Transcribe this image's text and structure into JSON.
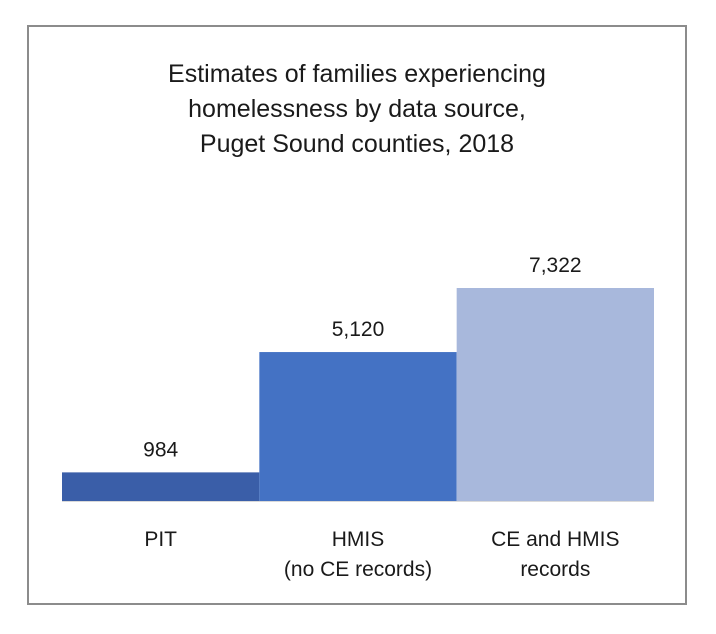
{
  "chart_data": {
    "type": "bar",
    "title_lines": [
      "Estimates of families experiencing",
      "homelessness by data source,",
      "Puget Sound counties, 2018"
    ],
    "categories": [
      [
        "PIT"
      ],
      [
        "HMIS",
        "(no CE records)"
      ],
      [
        "CE and HMIS",
        "records"
      ]
    ],
    "values": [
      984,
      5120,
      7322
    ],
    "data_labels": [
      "984",
      "5,120",
      "7,322"
    ],
    "colors": [
      "#3a5ea8",
      "#4472c4",
      "#a8b8dc"
    ],
    "ylim": [
      0,
      7322
    ],
    "xlabel": "",
    "ylabel": "",
    "grid": false,
    "legend": "none"
  }
}
